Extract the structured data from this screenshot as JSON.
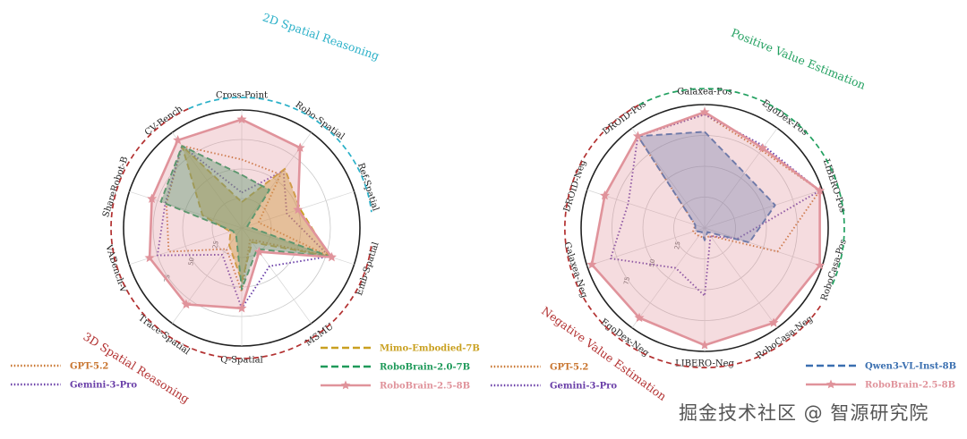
{
  "watermark": "掘金技术社区 @ 智源研究院",
  "colors": {
    "gpt": "#c8742e",
    "gemini": "#6a3fa8",
    "mimo": "#c9a020",
    "rb20": "#1f9a5a",
    "rb25": "#e0939b",
    "qwen": "#3a6fb0",
    "cyan": "#2ab0c8",
    "darkred": "#b23030",
    "green": "#22a060"
  },
  "chart_data": [
    {
      "type": "radar",
      "axes": [
        "Cross-Point",
        "Robo-Spatial",
        "Ref-Spatial",
        "Emb-Spatial",
        "MSMU",
        "Q-Spatial",
        "Trace-Spatial",
        "VABench-V",
        "ShareRobot-B",
        "CV-Bench"
      ],
      "range": [
        0,
        100
      ],
      "ticks": [
        "25",
        "50",
        "75"
      ],
      "groups": [
        {
          "label": "2D Spatial Reasoning",
          "color": "cyan",
          "axes": [
            "Cross-Point",
            "Robo-Spatial",
            "Ref-Spatial",
            "Emb-Spatial"
          ]
        },
        {
          "label": "3D Spatial Reasoning",
          "color": "darkred",
          "axes": [
            "MSMU",
            "Q-Spatial",
            "Trace-Spatial",
            "VABench-V",
            "ShareRobot-B",
            "CV-Bench"
          ]
        }
      ],
      "series": [
        {
          "name": "GPT-5.2",
          "color": "gpt",
          "style": "dotted",
          "values": [
            58,
            56,
            15,
            78,
            12,
            54,
            22,
            65,
            67,
            86
          ]
        },
        {
          "name": "Gemini-3-Pro",
          "color": "gemini",
          "style": "dotted",
          "values": [
            30,
            60,
            40,
            78,
            40,
            68,
            28,
            75,
            68,
            86
          ]
        },
        {
          "name": "Mimo-Embodied-7B",
          "color": "mimo",
          "style": "dashed",
          "values": [
            22,
            62,
            52,
            78,
            15,
            45,
            18,
            10,
            35,
            86
          ]
        },
        {
          "name": "RoboBrain-2.0-7B",
          "color": "rb20",
          "style": "dashed",
          "values": [
            45,
            40,
            5,
            78,
            22,
            52,
            8,
            8,
            72,
            86
          ]
        },
        {
          "name": "RoboBrain-2.5-8B",
          "color": "rb25",
          "style": "solid",
          "values": [
            92,
            84,
            50,
            80,
            25,
            68,
            80,
            82,
            80,
            92
          ]
        }
      ],
      "legend": [
        {
          "name": "GPT-5.2",
          "color": "gpt",
          "style": "dotted"
        },
        {
          "name": "Gemini-3-Pro",
          "color": "gemini",
          "style": "dotted"
        },
        {
          "name": "Mimo-Embodied-7B",
          "color": "mimo",
          "style": "dashed"
        },
        {
          "name": "RoboBrain-2.0-7B",
          "color": "rb20",
          "style": "dashed"
        },
        {
          "name": "RoboBrain-2.5-8B",
          "color": "rb25",
          "style": "star"
        }
      ]
    },
    {
      "type": "radar",
      "axes": [
        "Galaxea-Pos",
        "EgoDex-Pos",
        "LIBERO-Pos",
        "RoboCasa-Pos",
        "RoboCasa-Neg",
        "LIBERO-Neg",
        "EgoDex-Neg",
        "Galaxea-Neg",
        "DROID-Neg",
        "DROID-Pos"
      ],
      "range": [
        0,
        100
      ],
      "ticks": [
        "25",
        "50",
        "75"
      ],
      "groups": [
        {
          "label": "Positive Value Estimation",
          "color": "green",
          "axes": [
            "Galaxea-Pos",
            "EgoDex-Pos",
            "LIBERO-Pos",
            "RoboCasa-Pos"
          ]
        },
        {
          "label": "Negative Value Estimation",
          "color": "darkred",
          "axes": [
            "RoboCasa-Neg",
            "LIBERO-Neg",
            "EgoDex-Neg",
            "Galaxea-Neg",
            "DROID-Neg",
            "DROID-Pos"
          ]
        }
      ],
      "series": [
        {
          "name": "GPT-5.2",
          "color": "gpt",
          "style": "dotted",
          "values": [
            92,
            78,
            98,
            62,
            8,
            8,
            8,
            10,
            8,
            92
          ]
        },
        {
          "name": "Gemini-3-Pro",
          "color": "gemini",
          "style": "dotted",
          "values": [
            92,
            82,
            98,
            28,
            8,
            55,
            40,
            80,
            65,
            92
          ]
        },
        {
          "name": "Qwen3-VL-Inst-8B",
          "color": "qwen",
          "style": "dashed",
          "values": [
            78,
            55,
            60,
            38,
            4,
            10,
            4,
            8,
            8,
            92
          ]
        },
        {
          "name": "RoboBrain-2.5-8B",
          "color": "rb25",
          "style": "solid",
          "values": [
            94,
            80,
            98,
            98,
            95,
            95,
            90,
            96,
            85,
            92
          ]
        }
      ],
      "legend_left": [
        {
          "name": "GPT-5.2",
          "color": "gpt",
          "style": "dotted"
        },
        {
          "name": "Gemini-3-Pro",
          "color": "gemini",
          "style": "dotted"
        }
      ],
      "legend_right": [
        {
          "name": "Qwen3-VL-Inst-8B",
          "color": "qwen",
          "style": "dashed"
        },
        {
          "name": "RoboBrain-2.5-8B",
          "color": "rb25",
          "style": "star"
        }
      ]
    }
  ]
}
